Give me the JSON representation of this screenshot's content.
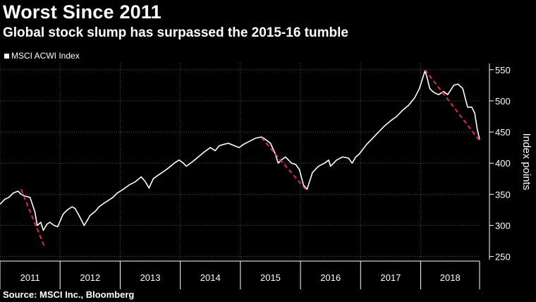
{
  "header": {
    "title": "Worst Since 2011",
    "subtitle": "Global stock slump has surpassed the 2015-16 tumble"
  },
  "legend": {
    "label": "MSCI ACWI Index"
  },
  "source": "Source: MSCI Inc., Bloomberg",
  "colors": {
    "background": "#000000",
    "line": "#ffffff",
    "trend": "#e8254a",
    "grid": "#555555"
  },
  "chart_data": {
    "type": "line",
    "title": "Worst Since 2011",
    "subtitle": "Global stock slump has surpassed the 2015-16 tumble",
    "ylabel": "Index points",
    "xlabel": "",
    "ylim": [
      245,
      560
    ],
    "xlim": [
      2011.0,
      2018.98
    ],
    "y_ticks": [
      250,
      300,
      350,
      400,
      450,
      500,
      550
    ],
    "x_tick_labels": [
      "2011",
      "2012",
      "2013",
      "2014",
      "2015",
      "2016",
      "2017",
      "2018"
    ],
    "grid": true,
    "legend_position": "top-left",
    "series": [
      {
        "name": "MSCI ACWI Index",
        "x": [
          2011.0,
          2011.08,
          2011.15,
          2011.22,
          2011.3,
          2011.35,
          2011.42,
          2011.5,
          2011.58,
          2011.62,
          2011.68,
          2011.72,
          2011.78,
          2011.83,
          2011.9,
          2011.96,
          2012.05,
          2012.12,
          2012.2,
          2012.25,
          2012.32,
          2012.4,
          2012.45,
          2012.5,
          2012.58,
          2012.65,
          2012.72,
          2012.8,
          2012.88,
          2012.95,
          2013.05,
          2013.15,
          2013.25,
          2013.35,
          2013.42,
          2013.48,
          2013.55,
          2013.62,
          2013.7,
          2013.8,
          2013.9,
          2013.98,
          2014.05,
          2014.1,
          2014.2,
          2014.3,
          2014.4,
          2014.5,
          2014.58,
          2014.65,
          2014.72,
          2014.8,
          2014.9,
          2014.98,
          2015.05,
          2015.15,
          2015.25,
          2015.35,
          2015.42,
          2015.5,
          2015.58,
          2015.63,
          2015.68,
          2015.75,
          2015.85,
          2015.92,
          2015.98,
          2016.05,
          2016.11,
          2016.2,
          2016.3,
          2016.4,
          2016.47,
          2016.5,
          2016.6,
          2016.7,
          2016.8,
          2016.86,
          2016.92,
          2016.98,
          2017.1,
          2017.2,
          2017.3,
          2017.4,
          2017.5,
          2017.6,
          2017.7,
          2017.8,
          2017.9,
          2017.98,
          2018.07,
          2018.1,
          2018.15,
          2018.2,
          2018.25,
          2018.3,
          2018.38,
          2018.45,
          2018.55,
          2018.62,
          2018.7,
          2018.74,
          2018.78,
          2018.85,
          2018.9,
          2018.94,
          2018.98
        ],
        "y": [
          334,
          342,
          345,
          352,
          355,
          350,
          347,
          345,
          322,
          300,
          305,
          292,
          302,
          305,
          300,
          298,
          318,
          325,
          330,
          327,
          315,
          300,
          308,
          316,
          322,
          330,
          335,
          340,
          345,
          352,
          358,
          365,
          370,
          378,
          370,
          360,
          375,
          380,
          385,
          392,
          400,
          405,
          400,
          395,
          402,
          410,
          418,
          425,
          420,
          428,
          430,
          432,
          428,
          425,
          430,
          435,
          440,
          442,
          438,
          432,
          415,
          400,
          405,
          410,
          400,
          398,
          390,
          365,
          358,
          385,
          395,
          400,
          405,
          395,
          405,
          410,
          408,
          400,
          410,
          415,
          430,
          440,
          450,
          460,
          468,
          475,
          485,
          493,
          505,
          520,
          548,
          540,
          520,
          515,
          512,
          510,
          515,
          510,
          525,
          527,
          520,
          505,
          490,
          490,
          480,
          455,
          438
        ]
      }
    ],
    "trend_lines": [
      {
        "x": [
          2011.35,
          2011.73
        ],
        "y": [
          358,
          268
        ]
      },
      {
        "x": [
          2015.35,
          2016.11
        ],
        "y": [
          441,
          355
        ]
      },
      {
        "x": [
          2018.07,
          2018.98
        ],
        "y": [
          550,
          436
        ]
      }
    ]
  }
}
